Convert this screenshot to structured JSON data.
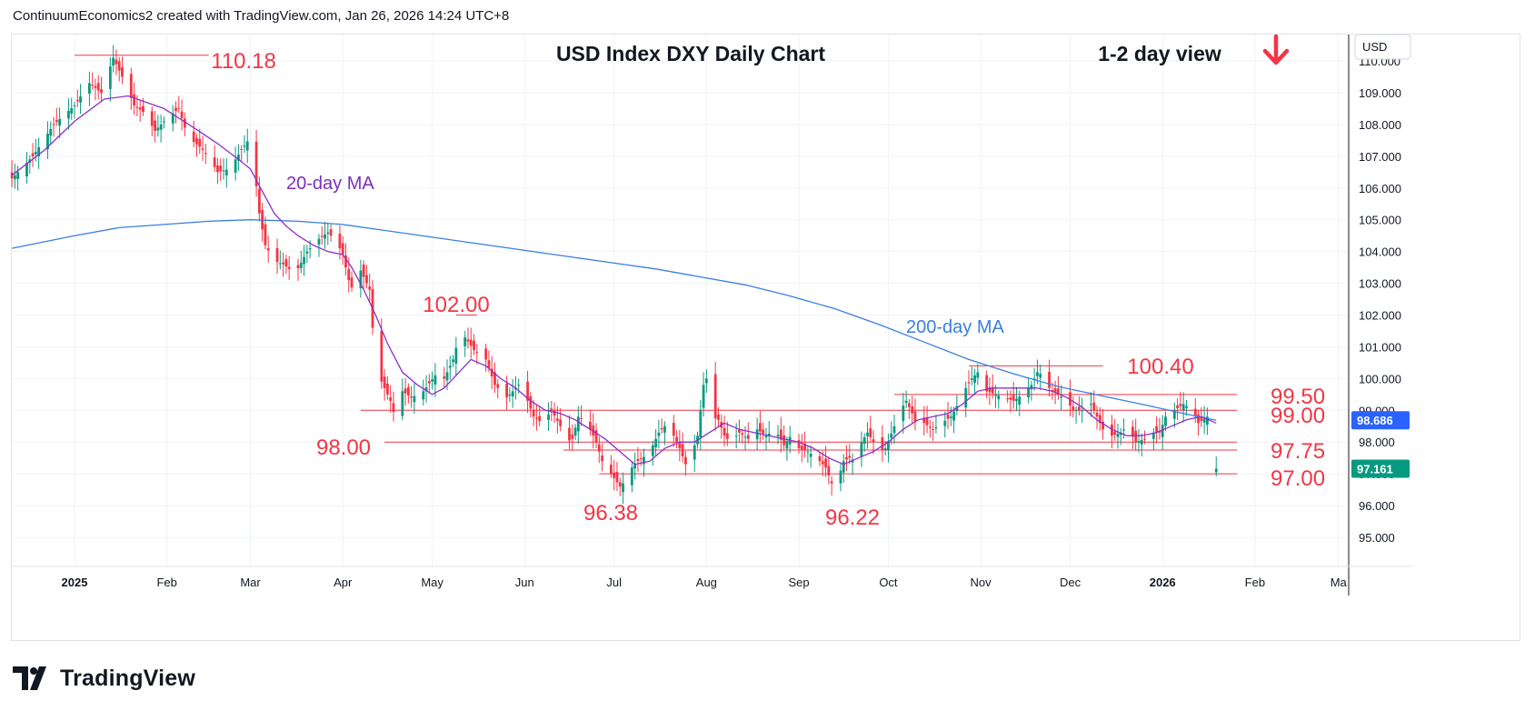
{
  "header": {
    "attribution": "ContinuumEconomics2 created with TradingView.com, Jan 26, 2026 14:24 UTC+8"
  },
  "footer": {
    "brand": "TradingView"
  },
  "chart_data": {
    "type": "candlestick",
    "title": "USD Index DXY Daily Chart",
    "view_label": "1-2 day view",
    "currency": "USD",
    "y_range": [
      94.3,
      110.6
    ],
    "y_ticks": [
      "95.000",
      "96.000",
      "97.000",
      "98.000",
      "99.000",
      "100.000",
      "101.000",
      "102.000",
      "103.000",
      "104.000",
      "105.000",
      "106.000",
      "107.000",
      "108.000",
      "109.000",
      "110.000"
    ],
    "x_ticks": [
      {
        "label": "2025",
        "d": 0,
        "bold": true
      },
      {
        "label": "Feb",
        "d": 31
      },
      {
        "label": "Mar",
        "d": 59
      },
      {
        "label": "Apr",
        "d": 90
      },
      {
        "label": "May",
        "d": 120
      },
      {
        "label": "Jun",
        "d": 151
      },
      {
        "label": "Jul",
        "d": 181
      },
      {
        "label": "Aug",
        "d": 212
      },
      {
        "label": "Sep",
        "d": 243
      },
      {
        "label": "Oct",
        "d": 273
      },
      {
        "label": "Nov",
        "d": 304
      },
      {
        "label": "Dec",
        "d": 334
      },
      {
        "label": "2026",
        "d": 365,
        "bold": true
      },
      {
        "label": "Feb",
        "d": 396
      },
      {
        "label": "Ma",
        "d": 424
      }
    ],
    "price_path": [
      [
        -21,
        106.3
      ],
      [
        -14,
        107.0
      ],
      [
        -7,
        108.0
      ],
      [
        0,
        108.6
      ],
      [
        5,
        109.3
      ],
      [
        9,
        109.0
      ],
      [
        13,
        110.1
      ],
      [
        17,
        109.3
      ],
      [
        20,
        108.6
      ],
      [
        23,
        108.4
      ],
      [
        27,
        107.8
      ],
      [
        31,
        108.2
      ],
      [
        35,
        108.5
      ],
      [
        38,
        107.6
      ],
      [
        42,
        107.3
      ],
      [
        45,
        107.0
      ],
      [
        48,
        106.5
      ],
      [
        52,
        106.6
      ],
      [
        56,
        107.2
      ],
      [
        59,
        107.6
      ],
      [
        60,
        106.9
      ],
      [
        62,
        105.2
      ],
      [
        64,
        104.2
      ],
      [
        67,
        103.7
      ],
      [
        70,
        103.6
      ],
      [
        74,
        103.3
      ],
      [
        78,
        104.0
      ],
      [
        82,
        104.4
      ],
      [
        85,
        104.6
      ],
      [
        88,
        104.3
      ],
      [
        90,
        103.9
      ],
      [
        92,
        103.1
      ],
      [
        95,
        102.4
      ],
      [
        96,
        103.4
      ],
      [
        99,
        102.8
      ],
      [
        100,
        101.6
      ],
      [
        101,
        100.3
      ],
      [
        104,
        99.7
      ],
      [
        106,
        99.3
      ],
      [
        108,
        98.6
      ],
      [
        110,
        99.6
      ],
      [
        113,
        99.4
      ],
      [
        117,
        99.6
      ],
      [
        121,
        100.1
      ],
      [
        124,
        100.0
      ],
      [
        127,
        100.6
      ],
      [
        130,
        101.7
      ],
      [
        131,
        101.3
      ],
      [
        134,
        100.9
      ],
      [
        138,
        100.6
      ],
      [
        141,
        99.8
      ],
      [
        145,
        99.4
      ],
      [
        149,
        99.8
      ],
      [
        152,
        99.3
      ],
      [
        154,
        98.8
      ],
      [
        157,
        98.6
      ],
      [
        160,
        99.0
      ],
      [
        163,
        98.5
      ],
      [
        165,
        98.0
      ],
      [
        167,
        98.1
      ],
      [
        169,
        98.8
      ],
      [
        171,
        98.7
      ],
      [
        173,
        98.4
      ],
      [
        175,
        98.0
      ],
      [
        177,
        97.4
      ],
      [
        180,
        97.0
      ],
      [
        183,
        96.6
      ],
      [
        185,
        96.8
      ],
      [
        187,
        97.2
      ],
      [
        189,
        97.4
      ],
      [
        192,
        97.6
      ],
      [
        194,
        97.9
      ],
      [
        196,
        98.3
      ],
      [
        199,
        98.6
      ],
      [
        201,
        98.2
      ],
      [
        203,
        97.8
      ],
      [
        205,
        97.3
      ],
      [
        207,
        97.6
      ],
      [
        209,
        98.2
      ],
      [
        211,
        99.8
      ],
      [
        212,
        100.0
      ],
      [
        214,
        98.8
      ],
      [
        216,
        98.7
      ],
      [
        218,
        98.2
      ],
      [
        220,
        98.0
      ],
      [
        223,
        98.3
      ],
      [
        226,
        98.1
      ],
      [
        229,
        98.4
      ],
      [
        232,
        98.2
      ],
      [
        235,
        98.4
      ],
      [
        238,
        97.9
      ],
      [
        241,
        98.3
      ],
      [
        243,
        97.8
      ],
      [
        246,
        97.7
      ],
      [
        249,
        97.5
      ],
      [
        252,
        97.2
      ],
      [
        254,
        96.7
      ],
      [
        256,
        96.8
      ],
      [
        258,
        97.4
      ],
      [
        260,
        97.5
      ],
      [
        262,
        97.4
      ],
      [
        264,
        98.0
      ],
      [
        266,
        98.3
      ],
      [
        268,
        98.0
      ],
      [
        270,
        97.7
      ],
      [
        272,
        97.8
      ],
      [
        275,
        98.5
      ],
      [
        277,
        99.0
      ],
      [
        279,
        99.3
      ],
      [
        281,
        98.9
      ],
      [
        283,
        98.4
      ],
      [
        285,
        98.6
      ],
      [
        288,
        98.4
      ],
      [
        291,
        98.6
      ],
      [
        294,
        98.8
      ],
      [
        297,
        99.3
      ],
      [
        299,
        99.7
      ],
      [
        301,
        100.0
      ],
      [
        303,
        100.2
      ],
      [
        304,
        99.9
      ],
      [
        306,
        99.6
      ],
      [
        309,
        99.5
      ],
      [
        312,
        99.4
      ],
      [
        315,
        99.3
      ],
      [
        318,
        99.5
      ],
      [
        321,
        99.8
      ],
      [
        323,
        100.2
      ],
      [
        325,
        100.1
      ],
      [
        327,
        99.7
      ],
      [
        330,
        99.5
      ],
      [
        333,
        99.3
      ],
      [
        335,
        99.0
      ],
      [
        338,
        99.0
      ],
      [
        341,
        99.2
      ],
      [
        343,
        98.8
      ],
      [
        345,
        98.4
      ],
      [
        348,
        98.2
      ],
      [
        351,
        98.3
      ],
      [
        353,
        98.5
      ],
      [
        356,
        98.0
      ],
      [
        359,
        98.1
      ],
      [
        362,
        98.3
      ],
      [
        364,
        98.3
      ],
      [
        366,
        98.8
      ],
      [
        369,
        99.0
      ],
      [
        372,
        99.2
      ],
      [
        375,
        99.0
      ],
      [
        377,
        98.6
      ],
      [
        380,
        98.8
      ],
      [
        381,
        98.2
      ],
      [
        382,
        97.4
      ],
      [
        383,
        97.161
      ]
    ],
    "last_day": 383,
    "ma20_path": [
      [
        -21,
        106.4
      ],
      [
        -10,
        107.2
      ],
      [
        0,
        108.1
      ],
      [
        10,
        108.8
      ],
      [
        18,
        108.9
      ],
      [
        30,
        108.5
      ],
      [
        40,
        107.9
      ],
      [
        48,
        107.4
      ],
      [
        55,
        106.9
      ],
      [
        59,
        106.6
      ],
      [
        63,
        105.9
      ],
      [
        67,
        105.2
      ],
      [
        71,
        104.8
      ],
      [
        75,
        104.5
      ],
      [
        80,
        104.2
      ],
      [
        85,
        104.0
      ],
      [
        90,
        103.9
      ],
      [
        93,
        103.5
      ],
      [
        97,
        102.8
      ],
      [
        101,
        102.0
      ],
      [
        105,
        101.1
      ],
      [
        110,
        100.2
      ],
      [
        115,
        99.8
      ],
      [
        120,
        99.5
      ],
      [
        124,
        99.7
      ],
      [
        128,
        100.1
      ],
      [
        133,
        100.6
      ],
      [
        138,
        100.4
      ],
      [
        143,
        100.0
      ],
      [
        148,
        99.7
      ],
      [
        153,
        99.3
      ],
      [
        158,
        99.0
      ],
      [
        163,
        98.9
      ],
      [
        168,
        98.7
      ],
      [
        173,
        98.4
      ],
      [
        178,
        98.1
      ],
      [
        183,
        97.7
      ],
      [
        188,
        97.3
      ],
      [
        193,
        97.4
      ],
      [
        198,
        97.8
      ],
      [
        203,
        98.0
      ],
      [
        208,
        98.0
      ],
      [
        213,
        98.3
      ],
      [
        218,
        98.6
      ],
      [
        223,
        98.4
      ],
      [
        228,
        98.3
      ],
      [
        233,
        98.2
      ],
      [
        238,
        98.1
      ],
      [
        243,
        98.0
      ],
      [
        248,
        97.8
      ],
      [
        253,
        97.5
      ],
      [
        258,
        97.3
      ],
      [
        263,
        97.5
      ],
      [
        268,
        97.7
      ],
      [
        273,
        98.0
      ],
      [
        278,
        98.4
      ],
      [
        283,
        98.7
      ],
      [
        288,
        98.8
      ],
      [
        293,
        98.9
      ],
      [
        298,
        99.2
      ],
      [
        303,
        99.6
      ],
      [
        308,
        99.7
      ],
      [
        313,
        99.7
      ],
      [
        318,
        99.7
      ],
      [
        323,
        99.7
      ],
      [
        328,
        99.6
      ],
      [
        333,
        99.4
      ],
      [
        338,
        99.1
      ],
      [
        343,
        98.7
      ],
      [
        348,
        98.4
      ],
      [
        353,
        98.2
      ],
      [
        358,
        98.2
      ],
      [
        363,
        98.3
      ],
      [
        368,
        98.5
      ],
      [
        373,
        98.7
      ],
      [
        378,
        98.8
      ],
      [
        383,
        98.6
      ]
    ],
    "ma200_path": [
      [
        -21,
        104.1
      ],
      [
        0,
        104.5
      ],
      [
        15,
        104.75
      ],
      [
        30,
        104.85
      ],
      [
        45,
        104.95
      ],
      [
        59,
        105.0
      ],
      [
        75,
        104.95
      ],
      [
        90,
        104.85
      ],
      [
        105,
        104.65
      ],
      [
        120,
        104.45
      ],
      [
        135,
        104.25
      ],
      [
        150,
        104.05
      ],
      [
        165,
        103.85
      ],
      [
        180,
        103.65
      ],
      [
        195,
        103.45
      ],
      [
        210,
        103.2
      ],
      [
        225,
        102.95
      ],
      [
        240,
        102.6
      ],
      [
        255,
        102.2
      ],
      [
        270,
        101.7
      ],
      [
        285,
        101.15
      ],
      [
        300,
        100.6
      ],
      [
        315,
        100.15
      ],
      [
        330,
        99.75
      ],
      [
        345,
        99.45
      ],
      [
        360,
        99.15
      ],
      [
        372,
        98.9
      ],
      [
        383,
        98.686
      ]
    ],
    "hlines": [
      {
        "y": 110.18,
        "d0": 0,
        "d1": 45
      },
      {
        "y": 102.0,
        "d0": 128,
        "d1": 135
      },
      {
        "y": 100.4,
        "d0": 300,
        "d1": 345
      },
      {
        "y": 99.5,
        "d0": 275,
        "d1": 390
      },
      {
        "y": 99.0,
        "d0": 96,
        "d1": 390
      },
      {
        "y": 98.0,
        "d0": 104,
        "d1": 390
      },
      {
        "y": 97.75,
        "d0": 164,
        "d1": 390
      },
      {
        "y": 97.0,
        "d0": 176,
        "d1": 390
      }
    ],
    "level_labels": [
      {
        "text": "110.18",
        "x": 268,
        "y": 75,
        "anchor": "middle"
      },
      {
        "text": "102.00",
        "x": 502,
        "y": 343,
        "anchor": "middle"
      },
      {
        "text": "98.00",
        "x": 378,
        "y": 500,
        "anchor": "middle"
      },
      {
        "text": "96.38",
        "x": 672,
        "y": 572,
        "anchor": "middle"
      },
      {
        "text": "96.22",
        "x": 938,
        "y": 577,
        "anchor": "middle"
      },
      {
        "text": "100.40",
        "x": 1277,
        "y": 411,
        "anchor": "middle"
      },
      {
        "text": "99.50",
        "x": 1398,
        "y": 444,
        "anchor": "start"
      },
      {
        "text": "99.00",
        "x": 1398,
        "y": 465,
        "anchor": "start"
      },
      {
        "text": "97.75",
        "x": 1398,
        "y": 504,
        "anchor": "start"
      },
      {
        "text": "97.00",
        "x": 1398,
        "y": 534,
        "anchor": "start"
      }
    ],
    "annotations": [
      {
        "text": "20-day MA",
        "x": 315,
        "y": 208,
        "color": "#7b2fbe"
      },
      {
        "text": "200-day MA",
        "x": 997,
        "y": 366,
        "color": "#3a7fe0"
      }
    ],
    "price_tags": [
      {
        "value": "98.686",
        "color": "#2962ff"
      },
      {
        "value": "97.161",
        "color": "#089981"
      }
    ],
    "colors": {
      "up": "#089981",
      "down": "#f23645",
      "level": "#f23645",
      "label": "#f23645",
      "ma20": "#8e2fc7",
      "ma200": "#3a7fe0"
    }
  }
}
